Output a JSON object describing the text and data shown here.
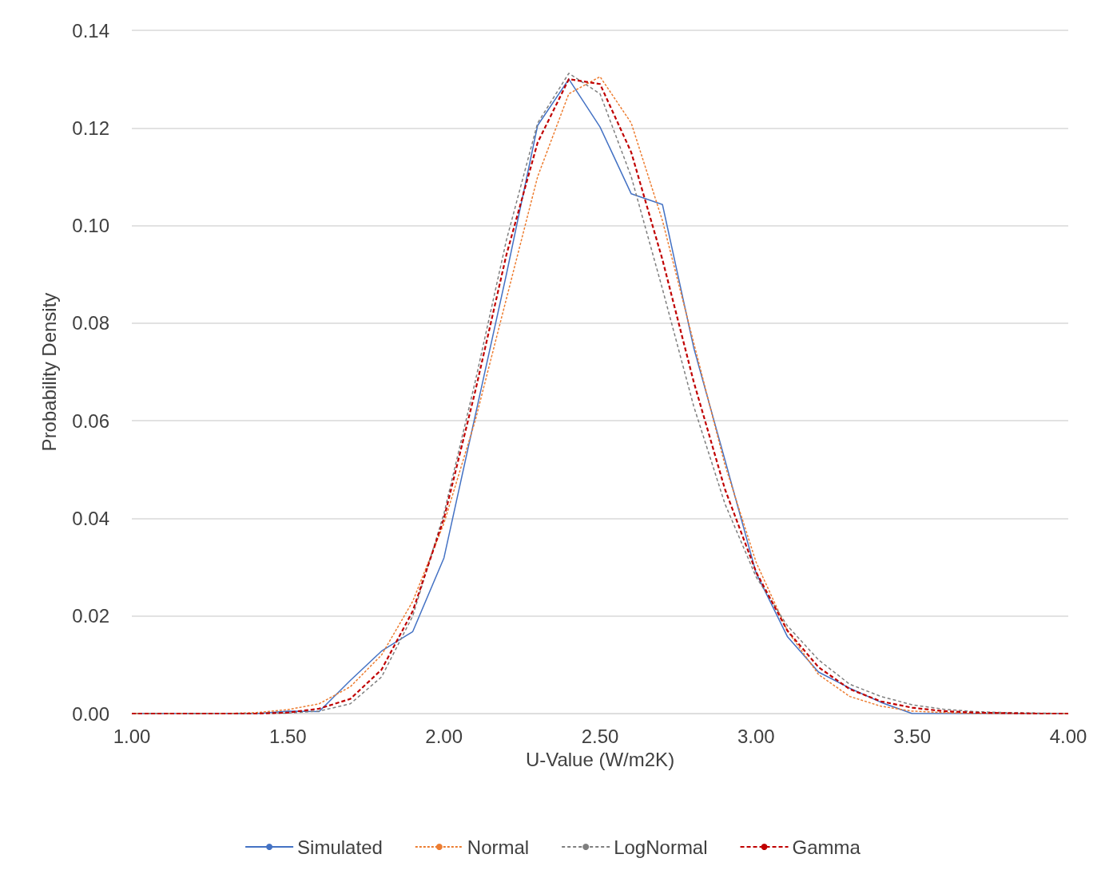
{
  "chart_data": {
    "type": "line",
    "xlabel": "U-Value (W/m2K)",
    "ylabel": "Probability Density",
    "x": [
      1.0,
      1.1,
      1.2,
      1.3,
      1.4,
      1.5,
      1.6,
      1.7,
      1.8,
      1.9,
      2.0,
      2.1,
      2.2,
      2.3,
      2.4,
      2.5,
      2.6,
      2.7,
      2.8,
      2.9,
      3.0,
      3.1,
      3.2,
      3.3,
      3.4,
      3.5,
      3.6,
      3.7,
      3.8,
      3.9,
      4.0
    ],
    "series": [
      {
        "name": "Simulated",
        "color": "#4472c4",
        "line_style": "solid",
        "values": [
          0,
          0,
          0,
          0,
          0,
          0.0005,
          0.0004,
          0.0068,
          0.0128,
          0.0168,
          0.0319,
          0.061,
          0.09,
          0.1205,
          0.13,
          0.1202,
          0.1065,
          0.1043,
          0.075,
          0.052,
          0.0288,
          0.0158,
          0.0085,
          0.0052,
          0.0023,
          0,
          0,
          0,
          0,
          0,
          0
        ]
      },
      {
        "name": "Normal",
        "color": "#ed7d31",
        "line_style": "dotted",
        "values": [
          0,
          0,
          0,
          0,
          0.0002,
          0.0008,
          0.002,
          0.0055,
          0.012,
          0.023,
          0.039,
          0.06,
          0.085,
          0.11,
          0.127,
          0.1305,
          0.121,
          0.101,
          0.076,
          0.051,
          0.031,
          0.017,
          0.008,
          0.0035,
          0.0015,
          0.0005,
          0.0002,
          0,
          0,
          0,
          0
        ]
      },
      {
        "name": "LogNormal",
        "color": "#7f7f7f",
        "line_style": "dashed",
        "values": [
          0,
          0,
          0,
          0,
          0,
          0.0001,
          0.0005,
          0.002,
          0.0075,
          0.02,
          0.041,
          0.068,
          0.097,
          0.121,
          0.1312,
          0.127,
          0.11,
          0.087,
          0.063,
          0.043,
          0.028,
          0.018,
          0.011,
          0.006,
          0.0035,
          0.0018,
          0.0009,
          0.0004,
          0.0002,
          0.0001,
          0
        ]
      },
      {
        "name": "Gamma",
        "color": "#c00000",
        "line_style": "longdash",
        "values": [
          0,
          0,
          0,
          0,
          0,
          0.0002,
          0.001,
          0.003,
          0.009,
          0.021,
          0.04,
          0.066,
          0.094,
          0.117,
          0.13,
          0.129,
          0.115,
          0.093,
          0.068,
          0.046,
          0.029,
          0.017,
          0.0095,
          0.005,
          0.0025,
          0.0012,
          0.0005,
          0.0002,
          0.0001,
          0,
          0
        ]
      }
    ],
    "xlim": [
      1.0,
      4.0
    ],
    "xticks": [
      {
        "value": 1.0,
        "label": "1.00"
      },
      {
        "value": 1.5,
        "label": "1.50"
      },
      {
        "value": 2.0,
        "label": "2.00"
      },
      {
        "value": 2.5,
        "label": "2.50"
      },
      {
        "value": 3.0,
        "label": "3.00"
      },
      {
        "value": 3.5,
        "label": "3.50"
      },
      {
        "value": 4.0,
        "label": "4.00"
      }
    ],
    "ylim": [
      0,
      0.14
    ],
    "yticks": [
      {
        "value": 0,
        "label": "0.00"
      },
      {
        "value": 0.02,
        "label": "0.02"
      },
      {
        "value": 0.04,
        "label": "0.04"
      },
      {
        "value": 0.06,
        "label": "0.06"
      },
      {
        "value": 0.08,
        "label": "0.08"
      },
      {
        "value": 0.1,
        "label": "0.10"
      },
      {
        "value": 0.12,
        "label": "0.12"
      },
      {
        "value": 0.14,
        "label": "0.14"
      }
    ],
    "grid": "y",
    "legend": "bottom",
    "marker": "none"
  }
}
